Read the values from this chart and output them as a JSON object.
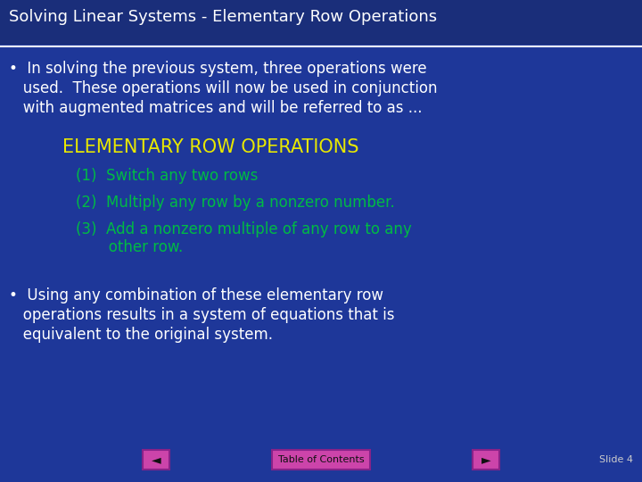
{
  "title": "Solving Linear Systems - Elementary Row Operations",
  "bg_color": "#1e3799",
  "title_color": "#ffffff",
  "title_fontsize": 13,
  "line_color": "#ffffff",
  "b1_line1": "•  In solving the previous system, three operations were",
  "b1_line2": "   used.  These operations will now be used in conjunction",
  "b1_line3": "   with augmented matrices and will be referred to as ...",
  "bullet1_color": "#ffffff",
  "bullet1_fontsize": 12,
  "heading": "ELEMENTARY ROW OPERATIONS",
  "heading_color": "#e8e800",
  "heading_fontsize": 15,
  "op1": "(1)  Switch any two rows",
  "op2": "(2)  Multiply any row by a nonzero number.",
  "op3_line1": "(3)  Add a nonzero multiple of any row to any",
  "op3_line2": "       other row.",
  "ops_color": "#00bb44",
  "ops_fontsize": 12,
  "b2_line1": "•  Using any combination of these elementary row",
  "b2_line2": "   operations results in a system of equations that is",
  "b2_line3": "   equivalent to the original system.",
  "bullet2_color": "#ffffff",
  "bullet2_fontsize": 12,
  "footer_color": "#cccccc",
  "footer_fontsize": 8,
  "nav_box_color": "#cc44aa",
  "nav_box_edge": "#882288",
  "toc_text": "Table of Contents",
  "slide_text": "Slide 4",
  "left_arrow": "◄",
  "right_arrow": "►"
}
